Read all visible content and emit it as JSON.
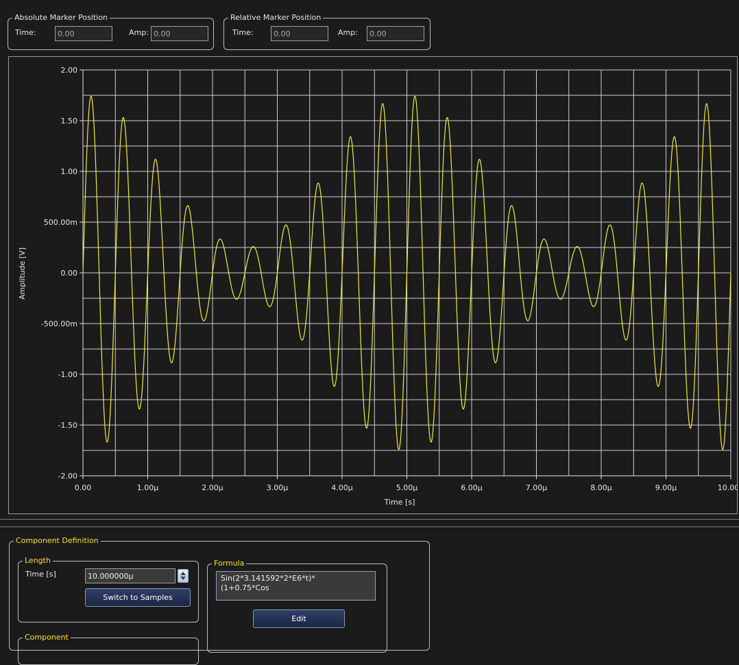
{
  "absolute_marker": {
    "title": "Absolute Marker Position",
    "time_label": "Time:",
    "time_value": "0.00",
    "amp_label": "Amp:",
    "amp_value": "0.00"
  },
  "relative_marker": {
    "title": "Relative Marker Position",
    "time_label": "Time:",
    "time_value": "0.00",
    "amp_label": "Amp:",
    "amp_value": "0.00"
  },
  "chart_data": {
    "type": "line",
    "xlabel": "Time [s]",
    "ylabel": "Amplitude [V]",
    "xlim": [
      0,
      10
    ],
    "ylim": [
      -2,
      2
    ],
    "x_tick_values": [
      0,
      1,
      2,
      3,
      4,
      5,
      6,
      7,
      8,
      9,
      10
    ],
    "x_tick_labels": [
      "0.00",
      "1.00µ",
      "2.00µ",
      "3.00µ",
      "4.00µ",
      "5.00µ",
      "6.00µ",
      "7.00µ",
      "8.00µ",
      "9.00µ",
      "10.00µ"
    ],
    "y_tick_values": [
      2,
      1.5,
      1,
      0.5,
      0,
      -0.5,
      -1,
      -1.5,
      -2
    ],
    "y_tick_labels": [
      "2.00",
      "1.50",
      "1.00",
      "500.00m",
      "0.00",
      "-500.00m",
      "-1.00",
      "-1.50",
      "-2.00"
    ],
    "grid": true,
    "series_color": "#f2ec3a",
    "signal": {
      "formula": "Sin(2*3.141592*2*E6*t)*(1+0.75*Cos(...))",
      "carrier_cycles_per_x_unit": 2,
      "modulation_depth": 0.75,
      "modulation_cycles_per_x_unit": 0.2
    }
  },
  "component_definition": {
    "title": "Component Definition",
    "length": {
      "title": "Length",
      "time_label": "Time [s]",
      "time_value": "10.000000µ",
      "switch_button": "Switch to Samples"
    },
    "formula": {
      "title": "Formula",
      "text": "Sin(2*3.141592*2*E6*t)*\n(1+0.75*Cos",
      "edit_button": "Edit"
    },
    "component_group_title": "Component"
  }
}
